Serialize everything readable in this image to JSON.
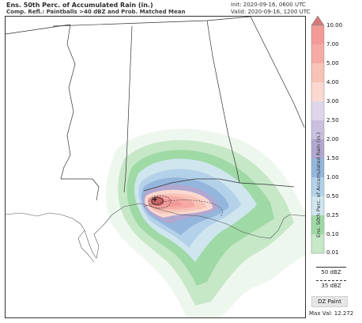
{
  "header": {
    "title": "Ens. 50th Perc. of Accumulated Rain (in.)",
    "subtitle": "Comp. Refl.: Paintballs >40 dBZ and Prob. Matched Mean",
    "init": "Init: 2020-09-16, 0600 UTC",
    "valid": "Valid: 2020-09-16, 1200 UTC"
  },
  "colorbar": {
    "title": "Ens. 50th Perc. of Accumulated Rain (in.)",
    "ticks": [
      "10.00",
      "7.00",
      "5.00",
      "4.00",
      "3.00",
      "2.50",
      "2.00",
      "1.50",
      "1.00",
      "0.50",
      "0.25",
      "0.10",
      "0.01"
    ],
    "colors": [
      "#f39a98",
      "#f6aaa6",
      "#f8c3b7",
      "#fbd8cf",
      "#ddd6ea",
      "#c8c0de",
      "#b1a7d0",
      "#94b6dc",
      "#b4d1ea",
      "#cfe6ee",
      "#9fd9a6",
      "#c6e8c7",
      "#e7f4e6"
    ]
  },
  "legend": {
    "dbz50": "50 dBZ",
    "dbz35": "35 dBZ",
    "button": "DZ Paint",
    "max_val": "Max Val: 12.272"
  },
  "colors": {
    "state_border": "#333333",
    "coastline": "#555555"
  }
}
